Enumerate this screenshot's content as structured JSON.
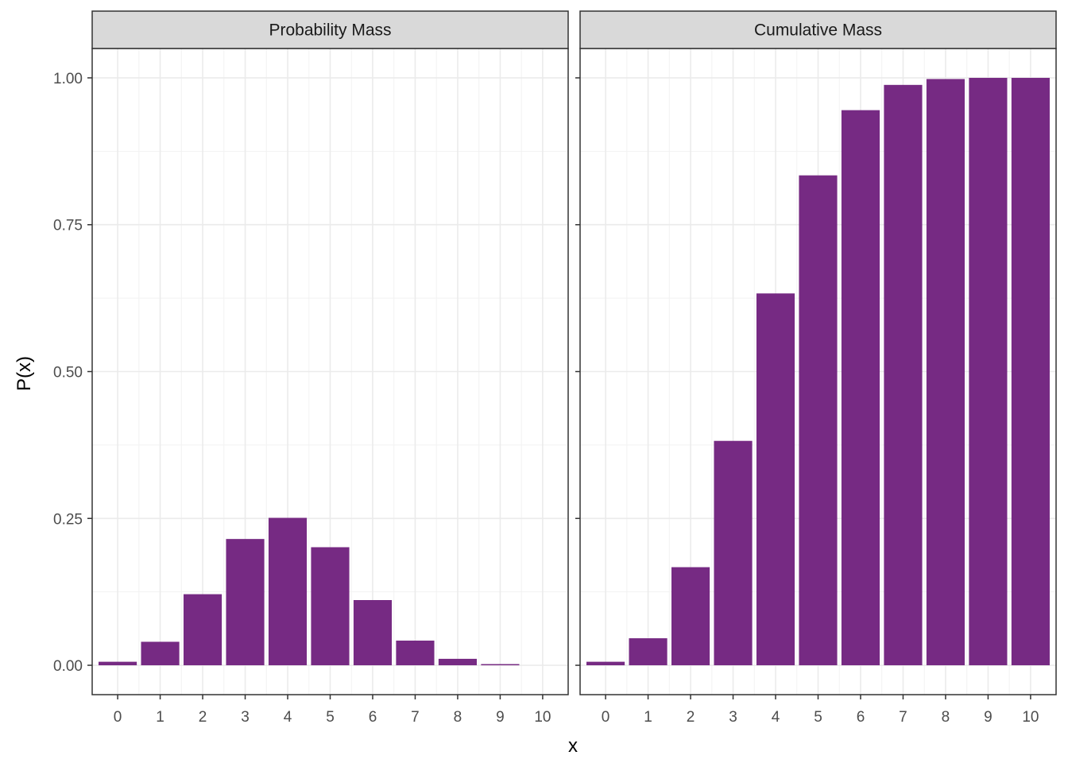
{
  "chart_data": {
    "type": "bar",
    "facet_layout": "1x2",
    "xlabel": "x",
    "ylabel": "P(x)",
    "ylim": [
      -0.05,
      1.05
    ],
    "y_ticks": [
      0.0,
      0.25,
      0.5,
      0.75,
      1.0
    ],
    "y_tick_labels": [
      "0.00",
      "0.25",
      "0.50",
      "0.75",
      "1.00"
    ],
    "categories": [
      "0",
      "1",
      "2",
      "3",
      "4",
      "5",
      "6",
      "7",
      "8",
      "9",
      "10"
    ],
    "bar_color": "#762A83",
    "grid": true,
    "panels": [
      {
        "title": "Probability Mass",
        "values": [
          0.006,
          0.04,
          0.121,
          0.215,
          0.251,
          0.201,
          0.111,
          0.042,
          0.011,
          0.002,
          0.0
        ]
      },
      {
        "title": "Cumulative Mass",
        "values": [
          0.006,
          0.046,
          0.167,
          0.382,
          0.633,
          0.834,
          0.945,
          0.988,
          0.998,
          1.0,
          1.0
        ]
      }
    ]
  }
}
